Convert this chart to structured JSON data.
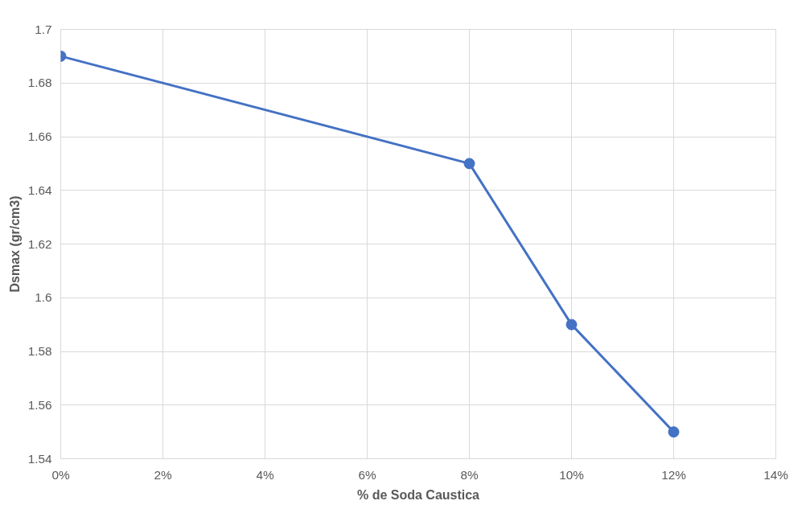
{
  "chart_data": {
    "type": "line",
    "xlabel": "% de Soda Caustica",
    "ylabel": "Dsmax (gr/cm3)",
    "x": [
      0,
      8,
      10,
      12
    ],
    "series": [
      {
        "color": "#4472c4",
        "values": [
          1.69,
          1.65,
          1.59,
          1.55
        ]
      }
    ],
    "xlim": [
      0,
      14
    ],
    "xticks": [
      {
        "value": 0,
        "label": "0%"
      },
      {
        "value": 2,
        "label": "2%"
      },
      {
        "value": 4,
        "label": "4%"
      },
      {
        "value": 6,
        "label": "6%"
      },
      {
        "value": 8,
        "label": "8%"
      },
      {
        "value": 10,
        "label": "10%"
      },
      {
        "value": 12,
        "label": "12%"
      },
      {
        "value": 14,
        "label": "14%"
      }
    ],
    "ylim": [
      1.54,
      1.7
    ],
    "yticks": [
      1.54,
      1.56,
      1.58,
      1.6,
      1.62,
      1.64,
      1.66,
      1.68,
      1.7
    ],
    "grid": true,
    "marker": "circle",
    "line_style": "solid"
  }
}
